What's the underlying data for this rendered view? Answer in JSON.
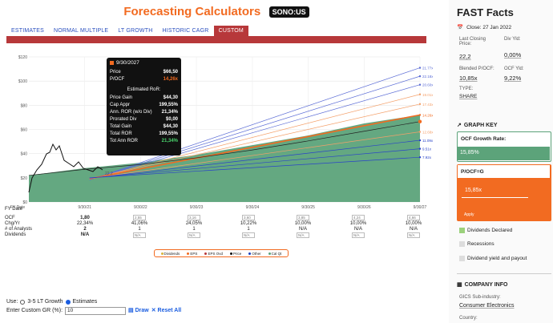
{
  "header": {
    "title": "Forecasting Calculators",
    "ticker": "SONO:US"
  },
  "tabs": [
    {
      "label": "ESTIMATES"
    },
    {
      "label": "NORMAL MULTIPLE"
    },
    {
      "label": "LT GROWTH"
    },
    {
      "label": "HISTORIC CAGR"
    },
    {
      "label": "CUSTOM"
    }
  ],
  "chart_data": {
    "type": "area",
    "y_ticks": [
      "$120",
      "$100",
      "$80",
      "$60",
      "$40",
      "$20",
      "$0"
    ],
    "ylim": [
      0,
      120
    ],
    "x_labels": [
      "FY Date",
      "9/30/21",
      "9/30/22",
      "9/30/23",
      "9/30/24",
      "9/30/25",
      "9/30/26",
      "9/30/27"
    ],
    "x": [
      "2020-09-30",
      "2021-09-30",
      "2022-09-30",
      "2023-09-30",
      "2024-09-30",
      "2025-09-30",
      "2026-09-30",
      "2027-09-30"
    ],
    "series": [
      {
        "name": "Cal Qt",
        "values": [
          22,
          28,
          32.5,
          39,
          47,
          55,
          65,
          72
        ]
      },
      {
        "name": "Price",
        "values": [
          22,
          27,
          31,
          36.5,
          43,
          50.5,
          58.5,
          66.5
        ]
      }
    ],
    "band_labels": [
      "21.77x",
      "22.18x",
      "20.60x",
      "19.01x",
      "17.43x",
      "14.26x",
      "12.68x",
      "11.09x",
      "9.51x",
      "7.92x"
    ],
    "band_end_values": [
      111,
      104,
      97,
      89,
      81,
      72,
      58,
      51,
      44,
      37
    ],
    "current_label": "22.2",
    "current_value": 22.2
  },
  "tooltip": {
    "date": "9/30/2027",
    "price_label": "Price",
    "price": "$66,50",
    "pocf_label": "P/OCF",
    "pocf": "14,26x",
    "section": "Estimated RoR:",
    "rows": [
      {
        "label": "Price Gain",
        "value": "$44,30"
      },
      {
        "label": "Cap Appr",
        "value": "199,55%"
      },
      {
        "label": "Ann. ROR (w/o Div)",
        "value": "21,34%"
      },
      {
        "label": "Prorated Div",
        "value": "$0,00"
      },
      {
        "label": "Total Gain",
        "value": "$44,30"
      },
      {
        "label": "Total ROR",
        "value": "199,55%"
      },
      {
        "label": "Tot Ann ROR",
        "value": "21,34%"
      }
    ]
  },
  "table": {
    "labels": [
      "OCF",
      "Chg/Yr",
      "# of Analysts",
      "Dividends"
    ],
    "col1": [
      "1,80",
      "22,34%",
      "2",
      "N/A"
    ],
    "inputs": [
      "2,55",
      "3,16",
      "3,60",
      "3,85",
      "4,24",
      "4,66"
    ],
    "chg": [
      "41,06%",
      "24,05%",
      "10,22%",
      "10,00%",
      "10,00%",
      "10,00%"
    ],
    "analysts": [
      "1",
      "1",
      "1",
      "N/A",
      "N/A",
      "N/A"
    ],
    "div_inputs": [
      "N/A",
      "N/A",
      "N/A",
      "N/A",
      "N/A",
      "N/A"
    ]
  },
  "legend": [
    "Dividends",
    "EPS",
    "EPS Ovd",
    "Price",
    "Other",
    "Cal Qt"
  ],
  "controls": {
    "use_label": "Use:",
    "opt1": "3-5 LT Growth",
    "opt2": "Estimates",
    "gr_label": "Enter Custom GR (%):",
    "gr_value": "10",
    "draw": "Draw",
    "reset": "Reset All"
  },
  "sidebar": {
    "title": "FAST Facts",
    "close": "Close: 27 Jan 2022",
    "closing_label": "Last Closing Price:",
    "closing_value": "22,2",
    "div_label": "Div Yld:",
    "div_value": "0,00%",
    "blended_label": "Blended P/OCF:",
    "blended_value": "10,85x",
    "ocf_label": "OCF Yld:",
    "ocf_value": "9,22%",
    "type_label": "TYPE:",
    "type_value": "SHARE",
    "graph_key": "GRAPH KEY",
    "growth_label": "OCF Growth Rate:",
    "growth_value": "15,85%",
    "pocf_label": "P/OCF=G",
    "pocf_value": "15,85x",
    "apply": "Apply",
    "checks": [
      "Dividends Declared",
      "Recessions",
      "Dividend yield and payout"
    ],
    "company": "COMPANY INFO",
    "gics_label": "GICS Sub-industry:",
    "gics_value": "Consumer Electronics",
    "country_label": "Country:"
  },
  "colors": {
    "orange": "#f26b21",
    "green": "#5ca37a",
    "blue": "#1a3fbf",
    "tab_red": "#b7383a"
  }
}
